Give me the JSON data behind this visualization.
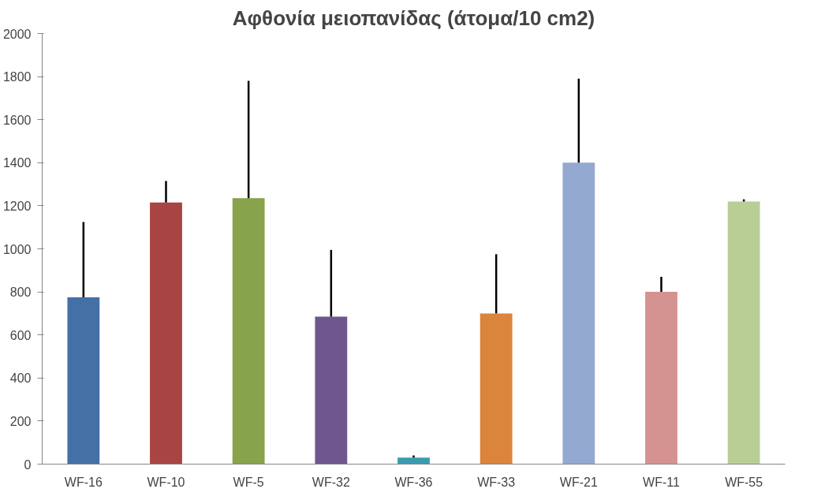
{
  "chart_data": {
    "type": "bar",
    "title": "Αφθονία μειοπανίδας (άτομα/10 cm2)",
    "categories": [
      "WF-16",
      "WF-10",
      "WF-5",
      "WF-32",
      "WF-36",
      "WF-33",
      "WF-21",
      "WF-11",
      "WF-55"
    ],
    "values": [
      775,
      1215,
      1235,
      685,
      30,
      700,
      1400,
      800,
      1220
    ],
    "colors": [
      "#4470a6",
      "#a84543",
      "#87a34b",
      "#6f568e",
      "#3a9bb0",
      "#db843c",
      "#94a9d0",
      "#d49291",
      "#b9ce95"
    ],
    "errors": [
      [
        775,
        1125
      ],
      [
        1215,
        1315
      ],
      [
        1235,
        1780
      ],
      [
        685,
        995
      ],
      [
        30,
        40
      ],
      [
        700,
        975
      ],
      [
        1400,
        1790
      ],
      [
        800,
        870
      ],
      [
        1220,
        1230
      ]
    ],
    "ylim": [
      0,
      2000
    ],
    "yticks": [
      0,
      200,
      400,
      600,
      800,
      1000,
      1200,
      1400,
      1600,
      1800,
      2000
    ],
    "grid": false
  }
}
